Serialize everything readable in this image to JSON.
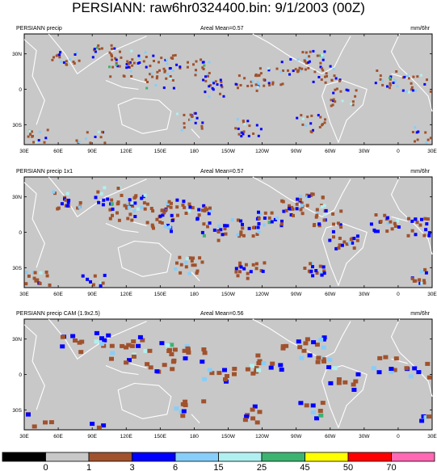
{
  "title": "PERSIANN: raw6hr0324400.bin: 9/1/2003 (00Z)",
  "colors": {
    "ocean": "#c8c8c8",
    "coast": "#ffffff",
    "levels": [
      "#000000",
      "#c8c8c8",
      "#a0522d",
      "#0000ff",
      "#87cefa",
      "#b0f0f0",
      "#3cb371",
      "#ffff00",
      "#ff0000",
      "#ff69b4"
    ]
  },
  "chart_data": [
    {
      "type": "heatmap",
      "title": "PERSIANN precip",
      "mean_label": "Areal Mean=0.57",
      "units": "mm/6hr",
      "x_ticks": [
        "30E",
        "60E",
        "90E",
        "120E",
        "150E",
        "180",
        "150W",
        "120W",
        "90W",
        "60W",
        "30W",
        "0",
        "30E"
      ],
      "y_ticks": [
        "30N",
        "0",
        "30S"
      ]
    },
    {
      "type": "heatmap",
      "title": "PERSIANN precip 1x1",
      "mean_label": "Areal Mean=0.57",
      "units": "mm/6hr",
      "x_ticks": [
        "30E",
        "60E",
        "90E",
        "120E",
        "150E",
        "180",
        "150W",
        "120W",
        "90W",
        "60W",
        "30W",
        "0",
        "30E"
      ],
      "y_ticks": [
        "30N",
        "0",
        "30S"
      ]
    },
    {
      "type": "heatmap",
      "title": "PERSIANN precip CAM (1.9x2.5)",
      "mean_label": "Areal Mean=0.56",
      "units": "mm/6hr",
      "x_ticks": [
        "30E",
        "60E",
        "90E",
        "120E",
        "150E",
        "180",
        "150W",
        "120W",
        "90W",
        "60W",
        "30W",
        "0",
        "30E"
      ],
      "y_ticks": [
        "30N",
        "0",
        "30S"
      ]
    }
  ],
  "colorbar": {
    "labels": [
      "0",
      "1",
      "3",
      "6",
      "15",
      "25",
      "45",
      "50",
      "70"
    ]
  }
}
